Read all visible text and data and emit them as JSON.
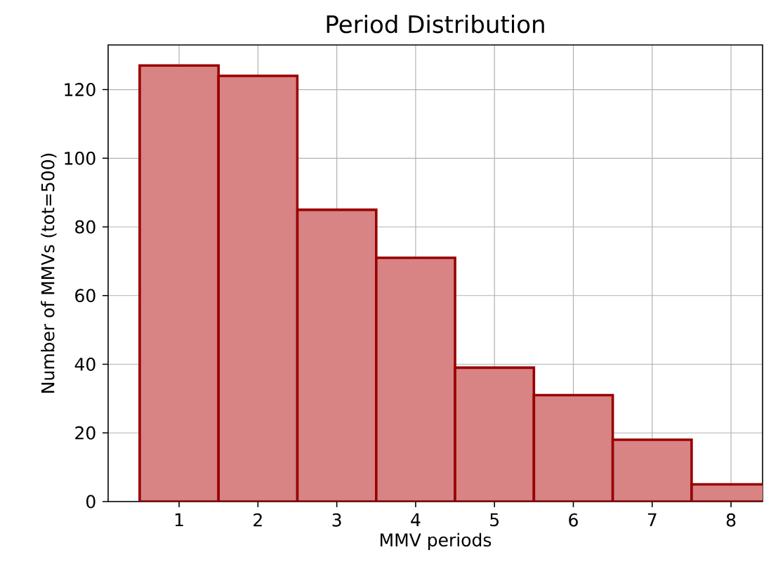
{
  "chart_data": {
    "type": "histogram",
    "title": "Period Distribution",
    "xlabel": "MMV periods",
    "ylabel": "Number of MMVs (tot=500)",
    "bins": [
      0.5,
      1.5,
      2.5,
      3.5,
      4.5,
      5.5,
      6.5,
      7.5,
      8.5
    ],
    "values": [
      127,
      124,
      85,
      71,
      39,
      31,
      18,
      5
    ],
    "color": "#d88384",
    "xlim": [
      0.1,
      8.4
    ],
    "ylim": [
      0,
      133
    ],
    "xticks": [
      1,
      2,
      3,
      4,
      5,
      6,
      7,
      8
    ],
    "yticks": [
      0,
      20,
      40,
      60,
      80,
      100,
      120
    ],
    "grid": true
  }
}
